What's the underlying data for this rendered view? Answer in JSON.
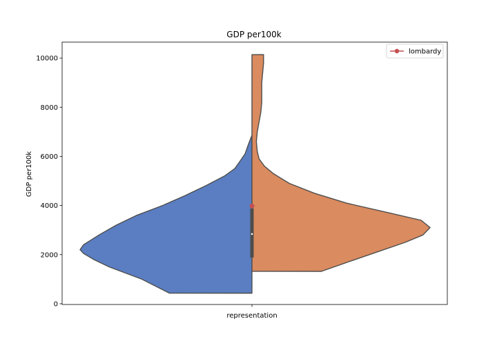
{
  "chart_data": {
    "type": "violin",
    "title": "GDP per100k",
    "xlabel": "",
    "ylabel": "GDP per100k",
    "categories": [
      "representation"
    ],
    "ylim": [
      -30,
      10650
    ],
    "yticks": [
      0,
      2000,
      4000,
      6000,
      8000,
      10000
    ],
    "grid": false,
    "legend": {
      "placement": "top-right",
      "entries": [
        "lombardy"
      ]
    },
    "colors": {
      "left": "#5b7ec2",
      "right": "#da8b5f",
      "outline": "#4d4d4d",
      "box": "#4d4d4d",
      "highlight": "#c44e52"
    },
    "series": [
      {
        "side": "left",
        "min": 430,
        "max": 6860,
        "density": [
          [
            430,
            0.48
          ],
          [
            1000,
            0.64
          ],
          [
            1500,
            0.83
          ],
          [
            1800,
            0.92
          ],
          [
            2050,
            0.98
          ],
          [
            2200,
            1.0
          ],
          [
            2400,
            0.98
          ],
          [
            2800,
            0.89
          ],
          [
            3200,
            0.79
          ],
          [
            3600,
            0.67
          ],
          [
            4000,
            0.52
          ],
          [
            4400,
            0.39
          ],
          [
            4800,
            0.27
          ],
          [
            5200,
            0.16
          ],
          [
            5500,
            0.1
          ],
          [
            5800,
            0.07
          ],
          [
            6100,
            0.04
          ],
          [
            6500,
            0.02
          ],
          [
            6860,
            0.0
          ]
        ]
      },
      {
        "side": "right",
        "min": 1320,
        "max": 10140,
        "density": [
          [
            1320,
            0.39
          ],
          [
            1700,
            0.54
          ],
          [
            2100,
            0.7
          ],
          [
            2500,
            0.86
          ],
          [
            2800,
            0.96
          ],
          [
            3100,
            1.0
          ],
          [
            3400,
            0.95
          ],
          [
            3700,
            0.77
          ],
          [
            4100,
            0.53
          ],
          [
            4500,
            0.35
          ],
          [
            4900,
            0.21
          ],
          [
            5300,
            0.12
          ],
          [
            5600,
            0.07
          ],
          [
            5900,
            0.04
          ],
          [
            6200,
            0.03
          ],
          [
            6600,
            0.025
          ],
          [
            7000,
            0.03
          ],
          [
            7400,
            0.04
          ],
          [
            7800,
            0.05
          ],
          [
            8200,
            0.055
          ],
          [
            8600,
            0.055
          ],
          [
            9000,
            0.055
          ],
          [
            9400,
            0.06
          ],
          [
            9800,
            0.065
          ],
          [
            10140,
            0.065
          ]
        ]
      }
    ],
    "box": {
      "q1": 1880,
      "median": 2840,
      "q3": 3880
    },
    "highlight": {
      "name": "lombardy",
      "value": 3980
    }
  }
}
